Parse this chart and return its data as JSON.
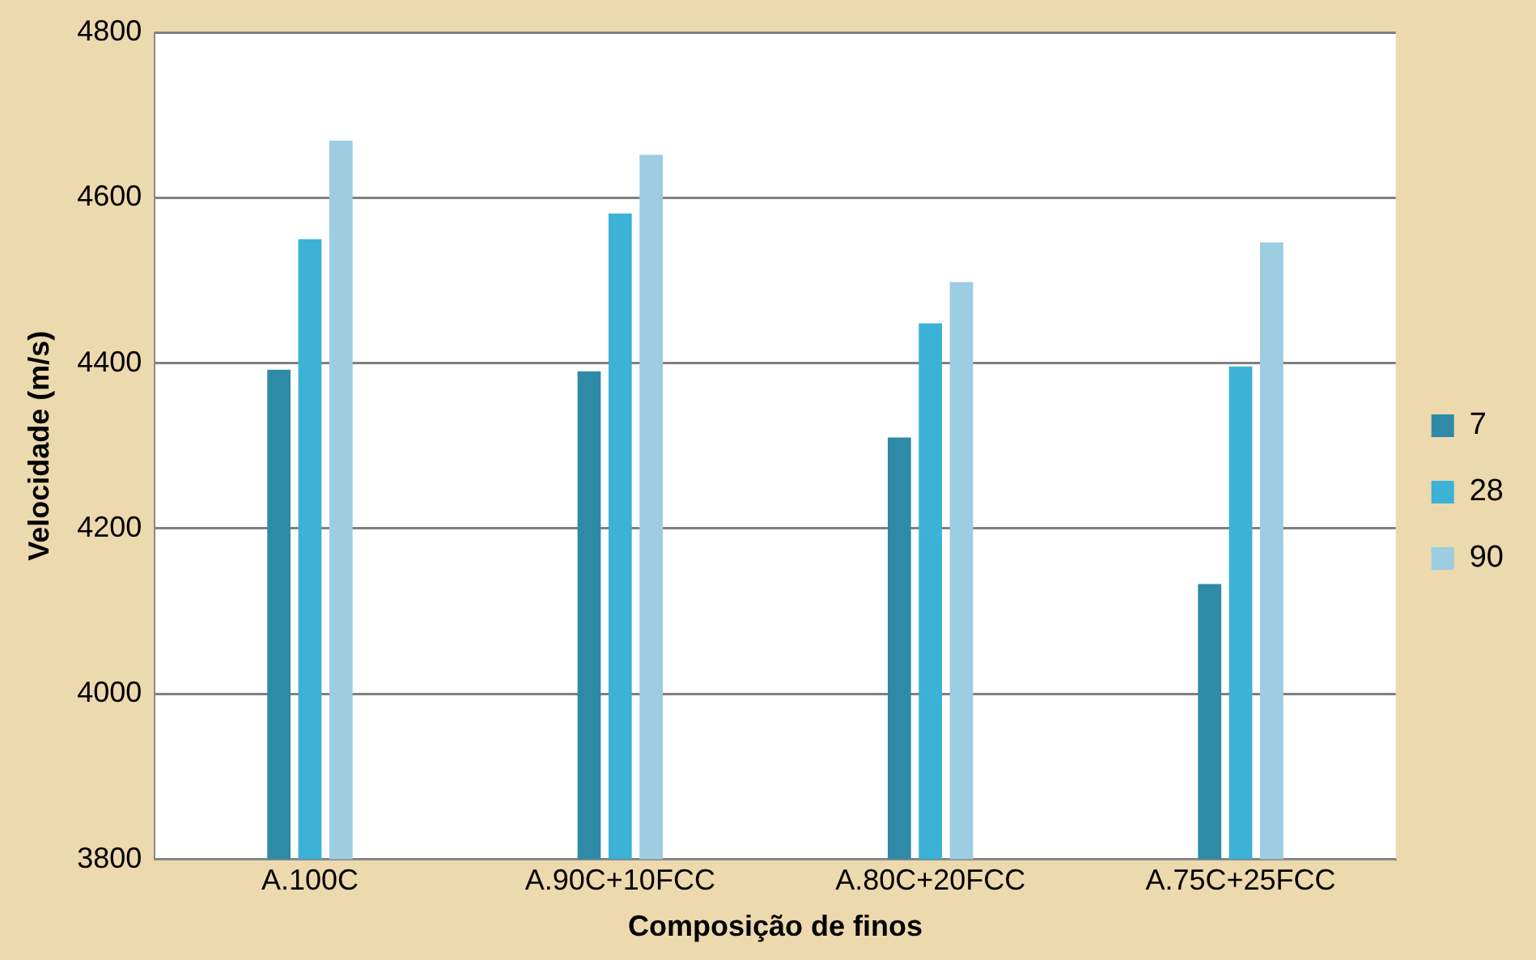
{
  "chart_data": {
    "type": "bar",
    "xlabel": "Composição de finos",
    "ylabel": "Velocidade (m/s)",
    "categories": [
      "A.100C",
      "A.90C+10FCC",
      "A.80C+20FCC",
      "A.75C+25FCC"
    ],
    "series": [
      {
        "name": "7",
        "color": "#2e8aa6",
        "values": [
          4392,
          4390,
          4310,
          4133
        ]
      },
      {
        "name": "28",
        "color": "#3bb2d6",
        "values": [
          4550,
          4581,
          4448,
          4396
        ]
      },
      {
        "name": "90",
        "color": "#9ccde0",
        "values": [
          4669,
          4652,
          4498,
          4546
        ]
      }
    ],
    "ylim": [
      3800,
      4800
    ],
    "yticks": [
      3800,
      4000,
      4200,
      4400,
      4600,
      4800
    ],
    "grid": "y",
    "legend": "right"
  }
}
